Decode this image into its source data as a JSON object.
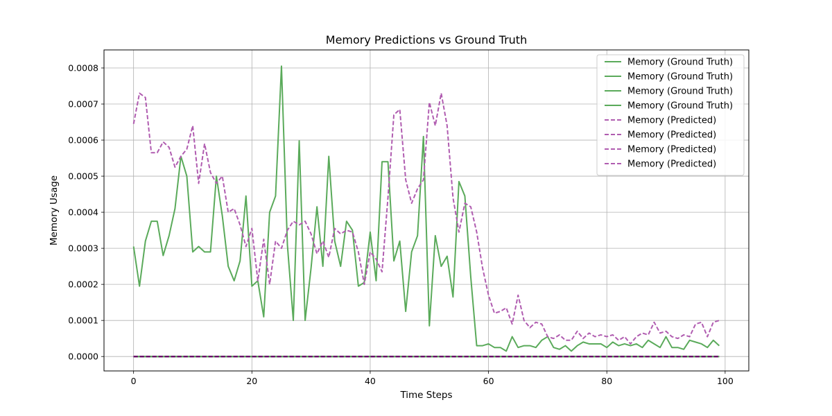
{
  "chart_data": {
    "type": "line",
    "title": "Memory Predictions vs Ground Truth",
    "xlabel": "Time Steps",
    "ylabel": "Memory Usage",
    "xlim": [
      -5,
      104
    ],
    "ylim": [
      -4e-05,
      0.00085
    ],
    "xticks": [
      0,
      20,
      40,
      60,
      80,
      100
    ],
    "xtick_labels": [
      "0",
      "20",
      "40",
      "60",
      "80",
      "100"
    ],
    "yticks": [
      0,
      0.0001,
      0.0002,
      0.0003,
      0.0004,
      0.0005,
      0.0006,
      0.0007,
      0.0008
    ],
    "ytick_labels": [
      "0.0000",
      "0.0001",
      "0.0002",
      "0.0003",
      "0.0004",
      "0.0005",
      "0.0006",
      "0.0007",
      "0.0008"
    ],
    "grid": true,
    "legend_position": "top-right",
    "colors": {
      "ground_truth": "#5aaa5a",
      "predicted": "#b05cb0",
      "zero_line": "#6a0a6a"
    },
    "series": [
      {
        "name": "Memory (Ground Truth)",
        "style": "solid",
        "color": "#5aaa5a",
        "values": [
          0.000305,
          0.000195,
          0.00032,
          0.000375,
          0.000375,
          0.00028,
          0.000335,
          0.00041,
          0.000555,
          0.0005,
          0.00029,
          0.000305,
          0.00029,
          0.00029,
          0.0005,
          0.00039,
          0.00025,
          0.00021,
          0.000265,
          0.000445,
          0.000195,
          0.00021,
          0.00011,
          0.0004,
          0.000445,
          0.000805,
          0.00031,
          0.0001,
          0.000598,
          0.0001,
          0.000245,
          0.000415,
          0.00025,
          0.000555,
          0.00032,
          0.00025,
          0.000375,
          0.00035,
          0.000195,
          0.000205,
          0.000345,
          0.00021,
          0.00054,
          0.00054,
          0.000265,
          0.00032,
          0.000125,
          0.00029,
          0.000335,
          0.00061,
          8.5e-05,
          0.000335,
          0.00025,
          0.000278,
          0.000165,
          0.000485,
          0.000445,
          0.00022,
          3e-05,
          3e-05,
          3.5e-05,
          2.5e-05,
          2.5e-05,
          1.5e-05,
          5.5e-05,
          2.5e-05,
          3e-05,
          3e-05,
          2.5e-05,
          4.5e-05,
          5.5e-05,
          2.5e-05,
          2e-05,
          3e-05,
          1.5e-05,
          3e-05,
          4e-05,
          3.5e-05,
          3.5e-05,
          3.5e-05,
          2.5e-05,
          4e-05,
          3e-05,
          3.5e-05,
          3e-05,
          3.5e-05,
          2.5e-05,
          4.5e-05,
          3.5e-05,
          2.5e-05,
          5.5e-05,
          2.5e-05,
          2.5e-05,
          2e-05,
          4.5e-05,
          4e-05,
          3.5e-05,
          2.5e-05,
          4.5e-05,
          3e-05
        ]
      },
      {
        "name": "Memory (Ground Truth)",
        "style": "solid",
        "color": "#5aaa5a",
        "constant": 0
      },
      {
        "name": "Memory (Ground Truth)",
        "style": "solid",
        "color": "#5aaa5a",
        "constant": 0
      },
      {
        "name": "Memory (Ground Truth)",
        "style": "solid",
        "color": "#5aaa5a",
        "constant": 0
      },
      {
        "name": "Memory (Predicted)",
        "style": "dashed",
        "color": "#b05cb0",
        "values": [
          0.000645,
          0.00073,
          0.000718,
          0.000565,
          0.000565,
          0.000595,
          0.00058,
          0.000525,
          0.000555,
          0.000575,
          0.00064,
          0.00048,
          0.00059,
          0.00051,
          0.00048,
          0.0005,
          0.0004,
          0.00041,
          0.000365,
          0.000305,
          0.000355,
          0.00021,
          0.000325,
          0.0002,
          0.00032,
          0.0003,
          0.00035,
          0.000375,
          0.000365,
          0.000375,
          0.00034,
          0.000285,
          0.00032,
          0.000275,
          0.000355,
          0.00034,
          0.00035,
          0.000345,
          0.00029,
          0.0002,
          0.00029,
          0.00027,
          0.000235,
          0.00044,
          0.00067,
          0.000685,
          0.00049,
          0.000425,
          0.000465,
          0.00049,
          0.000705,
          0.00064,
          0.00073,
          0.00064,
          0.00044,
          0.000345,
          0.000425,
          0.000415,
          0.000345,
          0.000245,
          0.00017,
          0.00012,
          0.000125,
          0.000135,
          9e-05,
          0.00017,
          0.0001,
          8e-05,
          9.5e-05,
          9e-05,
          5.5e-05,
          5e-05,
          6e-05,
          4.5e-05,
          4.5e-05,
          7e-05,
          5e-05,
          6.5e-05,
          5.5e-05,
          6e-05,
          5.5e-05,
          6e-05,
          4.5e-05,
          5.5e-05,
          3.5e-05,
          5.5e-05,
          6.5e-05,
          6e-05,
          9.5e-05,
          6.5e-05,
          7e-05,
          5.5e-05,
          5e-05,
          6e-05,
          5.5e-05,
          9e-05,
          9.5e-05,
          5.5e-05,
          9.5e-05,
          0.0001
        ]
      },
      {
        "name": "Memory (Predicted)",
        "style": "dashed",
        "color": "#b05cb0",
        "constant": 0
      },
      {
        "name": "Memory (Predicted)",
        "style": "dashed",
        "color": "#b05cb0",
        "constant": 0
      },
      {
        "name": "Memory (Predicted)",
        "style": "dashed",
        "color": "#b05cb0",
        "constant": 0
      }
    ]
  }
}
